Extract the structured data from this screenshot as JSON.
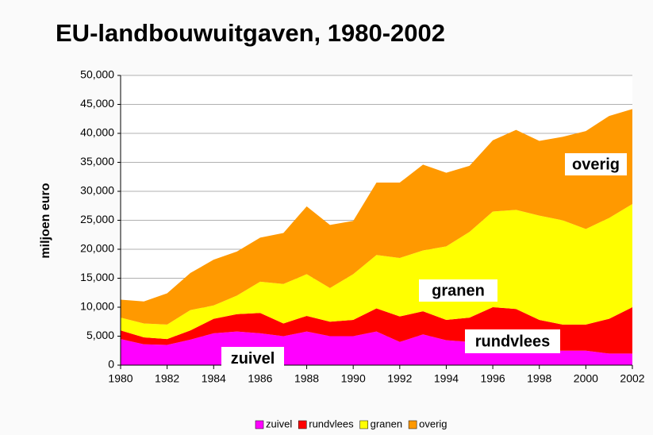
{
  "chart_data": {
    "type": "stacked_area",
    "title": "EU-landbouwuitgaven, 1980-2002",
    "y_label": "miljoen euro",
    "x": [
      1980,
      1981,
      1982,
      1983,
      1984,
      1985,
      1986,
      1987,
      1988,
      1989,
      1990,
      1991,
      1992,
      1993,
      1994,
      1995,
      1996,
      1997,
      1998,
      1999,
      2000,
      2001,
      2002
    ],
    "series": [
      {
        "name": "zuivel",
        "color": "#ff00ff",
        "values": [
          4500,
          3600,
          3500,
          4400,
          5500,
          5800,
          5500,
          5000,
          5800,
          5000,
          5000,
          5800,
          4000,
          5300,
          4300,
          4000,
          3000,
          2600,
          2500,
          2500,
          2500,
          2000,
          2000
        ]
      },
      {
        "name": "rundvlees",
        "color": "#ff0000",
        "values": [
          1500,
          1200,
          1000,
          1600,
          2500,
          3000,
          3500,
          2200,
          2700,
          2500,
          2800,
          4000,
          4400,
          4000,
          3500,
          4200,
          7000,
          7100,
          5300,
          4500,
          4500,
          6000,
          8000
        ]
      },
      {
        "name": "granen",
        "color": "#ffff00",
        "values": [
          2200,
          2400,
          2500,
          3500,
          2300,
          3200,
          5400,
          6800,
          7200,
          5800,
          7900,
          9200,
          10100,
          10500,
          12700,
          14800,
          16500,
          17100,
          18000,
          18000,
          16500,
          17400,
          17800
        ]
      },
      {
        "name": "overig",
        "color": "#ff9900",
        "values": [
          3100,
          3800,
          5400,
          6400,
          7900,
          7600,
          7600,
          8800,
          11700,
          10900,
          9200,
          12500,
          13000,
          14800,
          12700,
          11400,
          12300,
          13800,
          12900,
          14400,
          16900,
          17600,
          16400
        ]
      }
    ],
    "annotations": [
      "overig",
      "granen",
      "rundvlees",
      "zuivel"
    ],
    "xlim": [
      1980,
      2002
    ],
    "xticks": [
      1980,
      1982,
      1984,
      1986,
      1988,
      1990,
      1992,
      1994,
      1996,
      1998,
      2000,
      2002
    ],
    "ylim": [
      0,
      50000
    ],
    "yticks": [
      0,
      {
        "value": 5000,
        "label": "5,000"
      },
      {
        "value": 10000,
        "label": "10,000"
      },
      {
        "value": 15000,
        "label": "15,000"
      },
      {
        "value": 20000,
        "label": "20,000"
      },
      {
        "value": 25000,
        "label": "25,000"
      },
      {
        "value": 30000,
        "label": "30,000"
      },
      {
        "value": 35000,
        "label": "35,000"
      },
      {
        "value": 40000,
        "label": "40,000"
      },
      {
        "value": 45000,
        "label": "45,000"
      },
      {
        "value": 50000,
        "label": "50,000"
      }
    ],
    "grid": true,
    "legend": "bottom"
  }
}
